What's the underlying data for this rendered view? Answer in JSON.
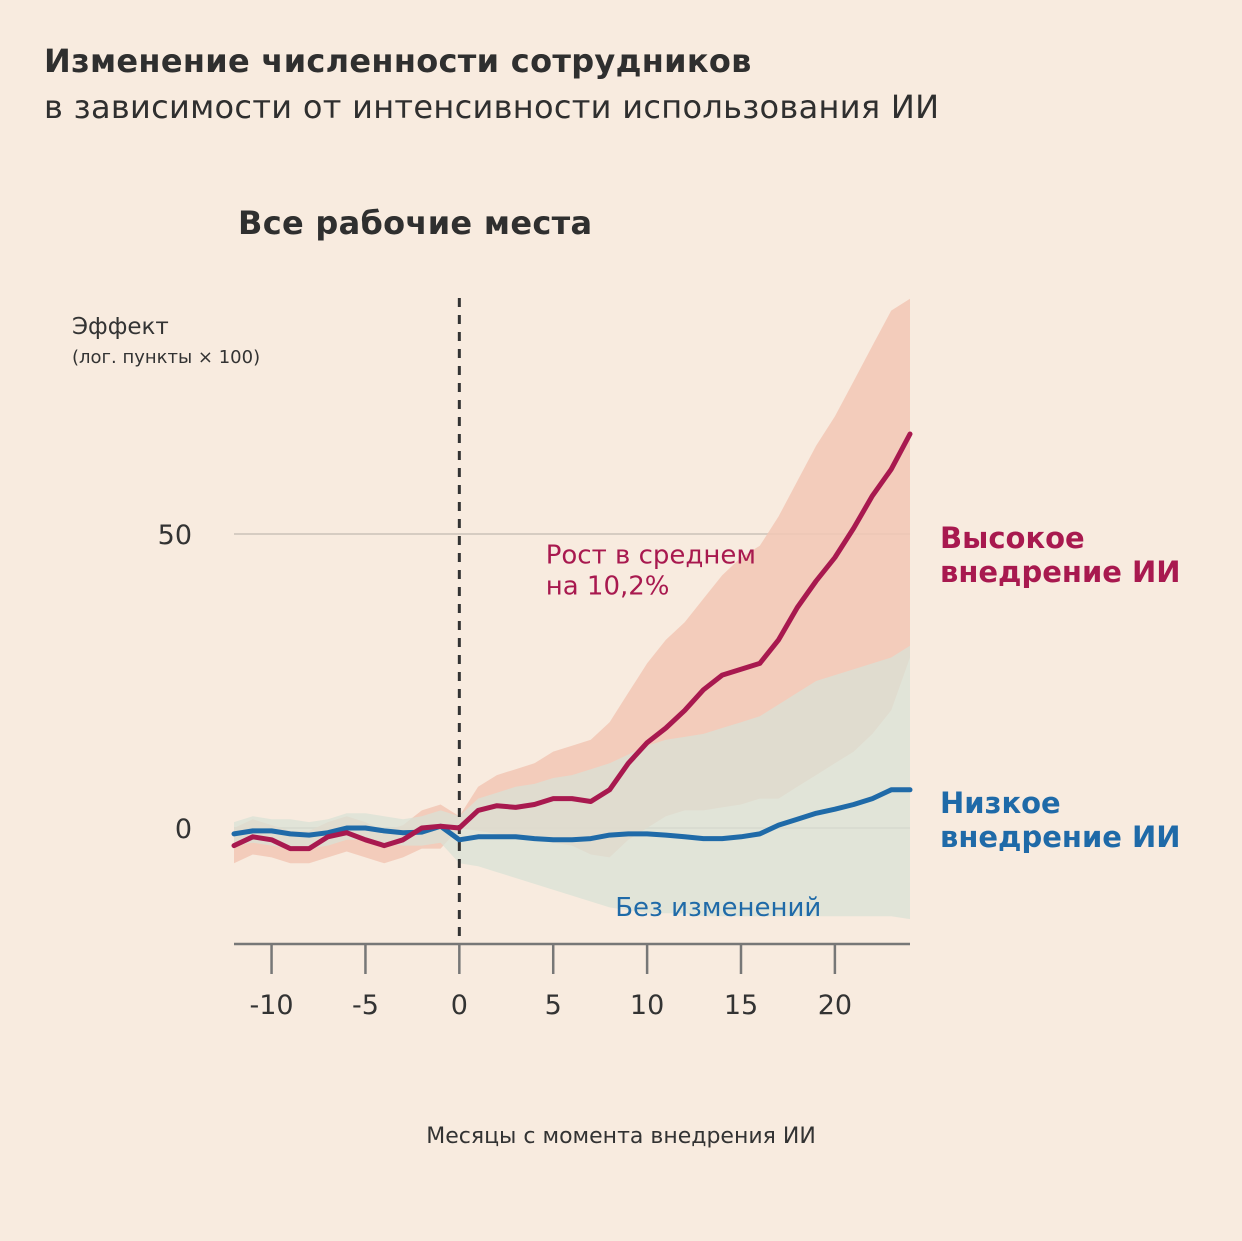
{
  "header": {
    "title": "Изменение численности сотрудников",
    "subtitle": "в зависимости от интенсивности использования ИИ"
  },
  "chart_data": {
    "type": "line",
    "title": "Все рабочие места",
    "ylabel": "Эффект",
    "ylabel_sub": "(лог. пункты × 100)",
    "xlabel": "Месяцы с момента внедрения ИИ",
    "xlim": [
      -12,
      24
    ],
    "ylim": [
      -20,
      70
    ],
    "x_ticks": [
      -10,
      -5,
      0,
      5,
      10,
      15,
      20
    ],
    "x_tick_labels": [
      "-10",
      "-5",
      "0",
      "5",
      "10",
      "15",
      "20"
    ],
    "y_ticks": [
      0,
      50
    ],
    "y_tick_labels": [
      "0",
      "50"
    ],
    "grid": "horizontal at y ticks",
    "event_line_x": 0,
    "x": [
      -12,
      -11,
      -10,
      -9,
      -8,
      -7,
      -6,
      -5,
      -4,
      -3,
      -2,
      -1,
      0,
      1,
      2,
      3,
      4,
      5,
      6,
      7,
      8,
      9,
      10,
      11,
      12,
      13,
      14,
      15,
      16,
      17,
      18,
      19,
      20,
      21,
      22,
      23,
      24
    ],
    "series": [
      {
        "name": "Высокое внедрение ИИ",
        "color": "#a8194f",
        "band_color": "#f2c7b5",
        "values": [
          -3,
          -1.5,
          -2,
          -3.5,
          -3.5,
          -1.5,
          -0.8,
          -2,
          -3,
          -2,
          0,
          0.3,
          0,
          3,
          3.8,
          3.5,
          4,
          5,
          5,
          4.5,
          6.5,
          11,
          14.5,
          17,
          20,
          23.5,
          26,
          27,
          28,
          32,
          37.5,
          42,
          46,
          51,
          56.5,
          61,
          67
        ],
        "lower": [
          -6,
          -4.5,
          -5,
          -6,
          -6,
          -5,
          -4,
          -5,
          -6,
          -5,
          -3.5,
          -3.5,
          0,
          -0.5,
          -1,
          -1.5,
          -2,
          -2.5,
          -3,
          -4.5,
          -5,
          -2,
          0,
          2,
          3,
          3,
          3.5,
          4,
          5,
          5,
          7,
          9,
          11,
          13,
          16,
          20,
          29
        ],
        "upper": [
          0,
          1.5,
          0.5,
          -0.5,
          -0.5,
          1,
          2,
          1,
          -0.5,
          0.5,
          3,
          4,
          2,
          7,
          9,
          10,
          11,
          13,
          14,
          15,
          18,
          23,
          28,
          32,
          35,
          39,
          43,
          46,
          48,
          53,
          59,
          65,
          70,
          76,
          82,
          88,
          97
        ]
      },
      {
        "name": "Низкое внедрение ИИ",
        "color": "#1f6aa8",
        "band_color": "#d9e1d6",
        "values": [
          -1,
          -0.5,
          -0.5,
          -1,
          -1.2,
          -0.8,
          0,
          0,
          -0.5,
          -0.8,
          -0.7,
          0.3,
          -2,
          -1.5,
          -1.5,
          -1.5,
          -1.8,
          -2,
          -2,
          -1.8,
          -1.2,
          -1,
          -1,
          -1.2,
          -1.5,
          -1.8,
          -1.8,
          -1.5,
          -1,
          0.5,
          1.5,
          2.5,
          3.2,
          4,
          5,
          6.5,
          6.5
        ],
        "lower": [
          -3,
          -2.5,
          -3,
          -3.5,
          -3.5,
          -3,
          -2,
          -2,
          -2.5,
          -3,
          -3,
          -2.5,
          -6,
          -6.5,
          -7.5,
          -8.5,
          -9.5,
          -10.5,
          -11.5,
          -12.5,
          -13.5,
          -14,
          -14.5,
          -14.5,
          -14.5,
          -15,
          -15,
          -15,
          -15,
          -15,
          -15,
          -15,
          -15,
          -15,
          -15,
          -15,
          -15.5
        ],
        "upper": [
          1,
          2,
          1.5,
          1.5,
          1,
          1.5,
          2.5,
          2.5,
          2,
          1.5,
          2,
          3,
          2,
          5,
          6,
          7,
          7.5,
          8.5,
          9,
          10,
          11,
          12.5,
          14,
          15,
          15.5,
          16,
          17,
          18,
          19,
          21,
          23,
          25,
          26,
          27,
          28,
          29,
          31
        ]
      }
    ],
    "annotations": [
      {
        "text": [
          "Рост в среднем",
          "на 10,2%"
        ],
        "color": "#a8194f",
        "x": 4.6,
        "y": 45
      },
      {
        "text": [
          "Без изменений"
        ],
        "color": "#1f6aa8",
        "x": 8.3,
        "y": -15
      }
    ]
  }
}
